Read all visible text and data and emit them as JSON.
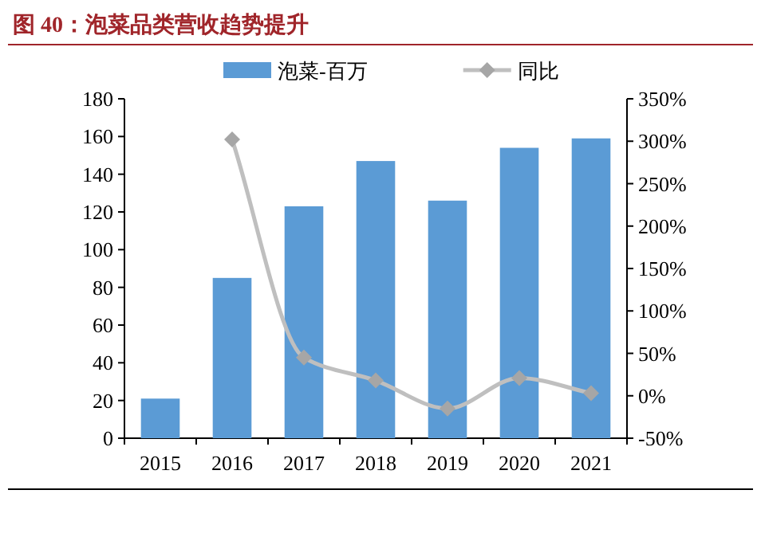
{
  "chart_data": {
    "type": "bar",
    "title": "图 40：泡菜品类营收趋势提升",
    "categories": [
      "2015",
      "2016",
      "2017",
      "2018",
      "2019",
      "2020",
      "2021"
    ],
    "series": [
      {
        "name": "泡菜-百万",
        "color": "#5b9bd5",
        "values": [
          21,
          85,
          123,
          147,
          126,
          154,
          159
        ]
      },
      {
        "name": "同比",
        "type": "line",
        "axis": "y2",
        "color": "#bfbfbf",
        "marker": "diamond",
        "values": [
          null,
          302,
          45,
          18,
          -15,
          21,
          3
        ]
      }
    ],
    "ylim": [
      0,
      180
    ],
    "yticks": [
      0,
      20,
      40,
      60,
      80,
      100,
      120,
      140,
      160,
      180
    ],
    "y2lim": [
      -50,
      350
    ],
    "y2ticks": [
      {
        "value": -50,
        "label": "-50%"
      },
      {
        "value": 0,
        "label": "0%"
      },
      {
        "value": 50,
        "label": "50%"
      },
      {
        "value": 100,
        "label": "100%"
      },
      {
        "value": 150,
        "label": "150%"
      },
      {
        "value": 200,
        "label": "200%"
      },
      {
        "value": 250,
        "label": "250%"
      },
      {
        "value": 300,
        "label": "300%"
      },
      {
        "value": 350,
        "label": "350%"
      }
    ],
    "legend": "top",
    "grid": false
  }
}
